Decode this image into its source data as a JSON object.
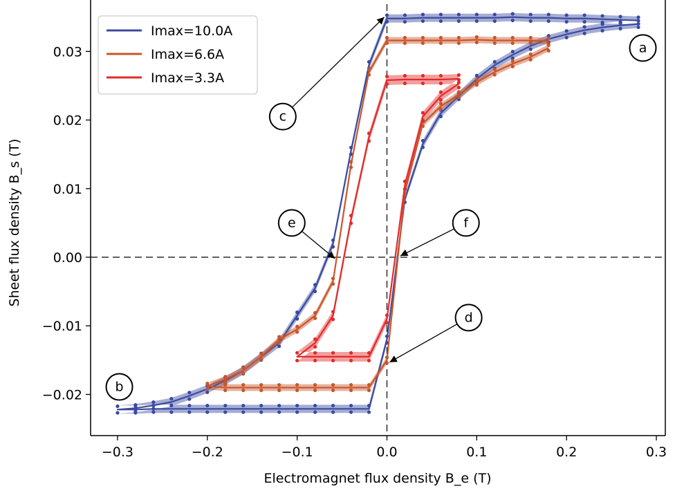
{
  "chart_data": {
    "type": "line",
    "title": "",
    "xlabel": "Electromagnet flux density B_e (T)",
    "ylabel": "Sheet flux density B_s (T)",
    "xlim": [
      -0.33,
      0.31
    ],
    "ylim": [
      -0.026,
      0.0385
    ],
    "xticks": [
      -0.3,
      -0.2,
      -0.1,
      0.0,
      0.1,
      0.2,
      0.3
    ],
    "xtick_labels": [
      "−0.3",
      "−0.2",
      "−0.1",
      "0.0",
      "0.1",
      "0.2",
      "0.3"
    ],
    "yticks": [
      -0.02,
      -0.01,
      0.0,
      0.01,
      0.02,
      0.03
    ],
    "ytick_labels": [
      "−0.02",
      "−0.01",
      "0.00",
      "0.01",
      "0.02",
      "0.03"
    ],
    "grid": false,
    "legend_position": "top-left",
    "reference_lines": {
      "x": 0.0,
      "y": 0.0,
      "style": "dashed"
    },
    "series": [
      {
        "name": "Imax=10.0A",
        "color": "#3a4aa0",
        "band": 0.0006,
        "x": [
          0.28,
          0.26,
          0.24,
          0.22,
          0.2,
          0.18,
          0.16,
          0.14,
          0.12,
          0.1,
          0.08,
          0.06,
          0.04,
          0.02,
          0.0,
          -0.02,
          -0.04,
          -0.06,
          -0.08,
          -0.1,
          -0.12,
          -0.14,
          -0.16,
          -0.18,
          -0.2,
          -0.22,
          -0.24,
          -0.26,
          -0.28,
          -0.3,
          -0.28,
          -0.26,
          -0.24,
          -0.22,
          -0.2,
          -0.18,
          -0.16,
          -0.14,
          -0.12,
          -0.1,
          -0.08,
          -0.06,
          -0.04,
          -0.02,
          0.0,
          0.02,
          0.04,
          0.06,
          0.08,
          0.1,
          0.12,
          0.14,
          0.16,
          0.18,
          0.2,
          0.22,
          0.24,
          0.26,
          0.28
        ],
        "y": [
          0.0345,
          0.0346,
          0.0347,
          0.0348,
          0.0348,
          0.0349,
          0.0349,
          0.035,
          0.0349,
          0.0349,
          0.0349,
          0.0349,
          0.0349,
          0.0348,
          0.0348,
          0.028,
          0.0155,
          0.002,
          -0.0045,
          -0.0085,
          -0.0125,
          -0.0145,
          -0.0165,
          -0.018,
          -0.0192,
          -0.0202,
          -0.0211,
          -0.0216,
          -0.022,
          -0.0222,
          -0.0222,
          -0.0221,
          -0.0221,
          -0.0221,
          -0.0221,
          -0.0221,
          -0.0221,
          -0.0221,
          -0.0221,
          -0.0221,
          -0.0221,
          -0.0221,
          -0.0221,
          -0.0221,
          -0.012,
          0.0085,
          0.0165,
          0.021,
          0.0235,
          0.026,
          0.028,
          0.0295,
          0.0308,
          0.0318,
          0.0325,
          0.0331,
          0.0335,
          0.0338,
          0.034
        ]
      },
      {
        "name": "Imax=6.6A",
        "color": "#c8552a",
        "band": 0.0005,
        "x": [
          0.18,
          0.16,
          0.14,
          0.12,
          0.1,
          0.08,
          0.06,
          0.04,
          0.02,
          0.0,
          -0.02,
          -0.04,
          -0.06,
          -0.08,
          -0.1,
          -0.12,
          -0.14,
          -0.16,
          -0.18,
          -0.2,
          -0.18,
          -0.16,
          -0.14,
          -0.12,
          -0.1,
          -0.08,
          -0.06,
          -0.04,
          -0.02,
          0.0,
          0.02,
          0.04,
          0.06,
          0.08,
          0.1,
          0.12,
          0.14,
          0.16,
          0.18
        ],
        "y": [
          0.0315,
          0.0316,
          0.0316,
          0.0316,
          0.0317,
          0.0316,
          0.0316,
          0.0316,
          0.0316,
          0.0316,
          0.027,
          0.0135,
          -0.0035,
          -0.0085,
          -0.0105,
          -0.012,
          -0.0145,
          -0.0165,
          -0.0178,
          -0.0188,
          -0.019,
          -0.019,
          -0.019,
          -0.019,
          -0.019,
          -0.019,
          -0.019,
          -0.019,
          -0.019,
          -0.015,
          0.0095,
          0.0195,
          0.022,
          0.0237,
          0.0255,
          0.027,
          0.0282,
          0.0292,
          0.0305
        ]
      },
      {
        "name": "Imax=3.3A",
        "color": "#e32a2a",
        "band": 0.0007,
        "x": [
          0.08,
          0.06,
          0.04,
          0.02,
          0.0,
          -0.02,
          -0.04,
          -0.06,
          -0.08,
          -0.1,
          -0.08,
          -0.06,
          -0.04,
          -0.02,
          0.0,
          0.02,
          0.04,
          0.06,
          0.08
        ],
        "y": [
          0.026,
          0.0259,
          0.0259,
          0.0259,
          0.0258,
          0.0175,
          0.0055,
          -0.0085,
          -0.0125,
          -0.0145,
          -0.0145,
          -0.0145,
          -0.0145,
          -0.0145,
          -0.009,
          0.0105,
          0.0205,
          0.0235,
          0.0253
        ]
      }
    ],
    "annotations": [
      {
        "label": "a",
        "bubble_xy": [
          0.285,
          0.0305
        ],
        "target_xy": null
      },
      {
        "label": "b",
        "bubble_xy": [
          -0.298,
          -0.0189
        ],
        "target_xy": null
      },
      {
        "label": "c",
        "bubble_xy": [
          -0.116,
          0.0205
        ],
        "target_xy": [
          -0.003,
          0.035
        ]
      },
      {
        "label": "d",
        "bubble_xy": [
          0.091,
          -0.0088
        ],
        "target_xy": [
          0.003,
          -0.0153
        ]
      },
      {
        "label": "e",
        "bubble_xy": [
          -0.106,
          0.005
        ],
        "target_xy": [
          -0.058,
          -0.0002
        ]
      },
      {
        "label": "f",
        "bubble_xy": [
          0.088,
          0.005
        ],
        "target_xy": [
          0.015,
          0.0002
        ]
      }
    ]
  }
}
